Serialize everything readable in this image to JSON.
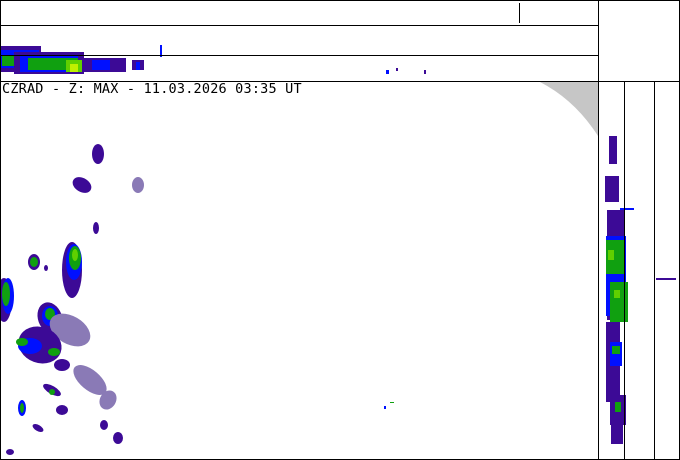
{
  "map": {
    "title": "CZRAD - Z: MAX - 11.03.2026 03:35 UT"
  },
  "colors": {
    "dark_purple": "#3c0a96",
    "blue": "#0010ff",
    "mid_blue": "#0070d0",
    "green": "#10a010",
    "light_green": "#60d000",
    "yellow_green": "#c0f000",
    "lavender": "#8a7ab6",
    "coverage_gray": "#c6c6c6",
    "frame": "#000000"
  },
  "panels": {
    "top_projection": "north-south max projection",
    "right_projection": "east-west max projection"
  }
}
